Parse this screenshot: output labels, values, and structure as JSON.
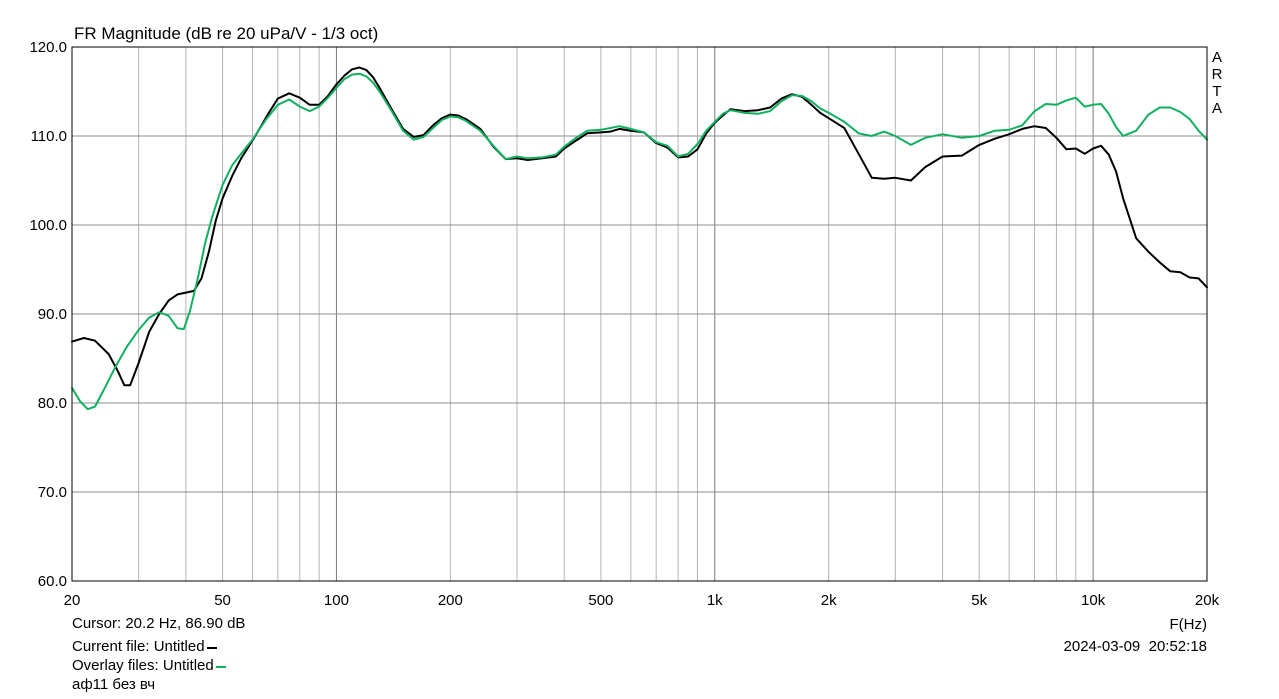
{
  "chart_data": {
    "type": "line",
    "title": "FR Magnitude (dB re 20 uPa/V - 1/3 oct)",
    "xlabel": "F(Hz)",
    "ylabel": "",
    "xscale": "log",
    "xlim": [
      20,
      20000
    ],
    "ylim": [
      60,
      120
    ],
    "grid": true,
    "legend": "none",
    "y_ticks": [
      "60.0",
      "70.0",
      "80.0",
      "90.0",
      "100.0",
      "110.0",
      "120.0"
    ],
    "x_ticks": [
      {
        "value": 20,
        "label": "20"
      },
      {
        "value": 50,
        "label": "50"
      },
      {
        "value": 100,
        "label": "100"
      },
      {
        "value": 200,
        "label": "200"
      },
      {
        "value": 500,
        "label": "500"
      },
      {
        "value": 1000,
        "label": "1k"
      },
      {
        "value": 2000,
        "label": "2k"
      },
      {
        "value": 5000,
        "label": "5k"
      },
      {
        "value": 10000,
        "label": "10k"
      },
      {
        "value": 20000,
        "label": "20k"
      }
    ],
    "series": [
      {
        "color": "#000000",
        "points": [
          [
            20,
            86.9
          ],
          [
            21.5,
            87.3
          ],
          [
            23,
            87.0
          ],
          [
            25,
            85.5
          ],
          [
            26.5,
            83.5
          ],
          [
            27.5,
            82.0
          ],
          [
            28.5,
            82.0
          ],
          [
            30,
            84.5
          ],
          [
            32,
            88.0
          ],
          [
            34,
            90.0
          ],
          [
            36,
            91.5
          ],
          [
            38,
            92.2
          ],
          [
            40,
            92.4
          ],
          [
            42,
            92.6
          ],
          [
            44,
            94.0
          ],
          [
            46,
            97.0
          ],
          [
            48,
            100.5
          ],
          [
            50,
            103.0
          ],
          [
            53,
            105.5
          ],
          [
            56,
            107.5
          ],
          [
            60,
            109.5
          ],
          [
            63,
            111.0
          ],
          [
            66,
            112.5
          ],
          [
            70,
            114.2
          ],
          [
            75,
            114.8
          ],
          [
            80,
            114.3
          ],
          [
            85,
            113.5
          ],
          [
            90,
            113.5
          ],
          [
            95,
            114.5
          ],
          [
            100,
            115.8
          ],
          [
            105,
            116.8
          ],
          [
            110,
            117.5
          ],
          [
            115,
            117.7
          ],
          [
            120,
            117.4
          ],
          [
            125,
            116.6
          ],
          [
            130,
            115.4
          ],
          [
            140,
            113.0
          ],
          [
            150,
            110.8
          ],
          [
            160,
            109.9
          ],
          [
            170,
            110.1
          ],
          [
            180,
            111.2
          ],
          [
            190,
            112.0
          ],
          [
            200,
            112.4
          ],
          [
            210,
            112.3
          ],
          [
            220,
            111.9
          ],
          [
            240,
            110.8
          ],
          [
            260,
            108.8
          ],
          [
            280,
            107.4
          ],
          [
            300,
            107.5
          ],
          [
            320,
            107.3
          ],
          [
            350,
            107.5
          ],
          [
            380,
            107.7
          ],
          [
            400,
            108.6
          ],
          [
            430,
            109.5
          ],
          [
            460,
            110.3
          ],
          [
            500,
            110.4
          ],
          [
            530,
            110.5
          ],
          [
            560,
            110.8
          ],
          [
            600,
            110.6
          ],
          [
            650,
            110.4
          ],
          [
            700,
            109.2
          ],
          [
            750,
            108.7
          ],
          [
            800,
            107.6
          ],
          [
            850,
            107.7
          ],
          [
            900,
            108.5
          ],
          [
            950,
            110.3
          ],
          [
            1000,
            111.5
          ],
          [
            1050,
            112.3
          ],
          [
            1100,
            113.0
          ],
          [
            1200,
            112.8
          ],
          [
            1300,
            112.9
          ],
          [
            1400,
            113.2
          ],
          [
            1500,
            114.2
          ],
          [
            1600,
            114.7
          ],
          [
            1700,
            114.4
          ],
          [
            1800,
            113.5
          ],
          [
            1900,
            112.6
          ],
          [
            2000,
            112.0
          ],
          [
            2200,
            110.9
          ],
          [
            2400,
            108.0
          ],
          [
            2600,
            105.3
          ],
          [
            2800,
            105.2
          ],
          [
            3000,
            105.3
          ],
          [
            3300,
            105.0
          ],
          [
            3600,
            106.5
          ],
          [
            4000,
            107.7
          ],
          [
            4500,
            107.8
          ],
          [
            5000,
            109.0
          ],
          [
            5500,
            109.7
          ],
          [
            6000,
            110.2
          ],
          [
            6500,
            110.8
          ],
          [
            7000,
            111.1
          ],
          [
            7500,
            110.9
          ],
          [
            8000,
            109.8
          ],
          [
            8500,
            108.5
          ],
          [
            9000,
            108.6
          ],
          [
            9500,
            108.0
          ],
          [
            10000,
            108.6
          ],
          [
            10500,
            108.9
          ],
          [
            11000,
            107.9
          ],
          [
            11500,
            106.0
          ],
          [
            12000,
            103.0
          ],
          [
            13000,
            98.5
          ],
          [
            14000,
            97.0
          ],
          [
            15000,
            95.8
          ],
          [
            16000,
            94.8
          ],
          [
            17000,
            94.7
          ],
          [
            18000,
            94.1
          ],
          [
            19000,
            94.0
          ],
          [
            20000,
            93.0
          ]
        ]
      },
      {
        "color": "#10b060",
        "points": [
          [
            20,
            81.7
          ],
          [
            21,
            80.2
          ],
          [
            22,
            79.3
          ],
          [
            23,
            79.6
          ],
          [
            24.5,
            81.8
          ],
          [
            26,
            84.0
          ],
          [
            28,
            86.4
          ],
          [
            30,
            88.2
          ],
          [
            32,
            89.6
          ],
          [
            34,
            90.2
          ],
          [
            36,
            89.8
          ],
          [
            38,
            88.4
          ],
          [
            39.5,
            88.3
          ],
          [
            41,
            90.3
          ],
          [
            43,
            94.0
          ],
          [
            45,
            98.0
          ],
          [
            47,
            101.0
          ],
          [
            50,
            104.5
          ],
          [
            53,
            106.7
          ],
          [
            56,
            108.0
          ],
          [
            60,
            109.6
          ],
          [
            65,
            111.8
          ],
          [
            70,
            113.5
          ],
          [
            75,
            114.1
          ],
          [
            80,
            113.3
          ],
          [
            85,
            112.8
          ],
          [
            90,
            113.3
          ],
          [
            95,
            114.3
          ],
          [
            100,
            115.4
          ],
          [
            105,
            116.4
          ],
          [
            110,
            116.9
          ],
          [
            115,
            117.0
          ],
          [
            120,
            116.7
          ],
          [
            125,
            116.0
          ],
          [
            130,
            115.0
          ],
          [
            140,
            112.8
          ],
          [
            150,
            110.6
          ],
          [
            160,
            109.6
          ],
          [
            170,
            109.9
          ],
          [
            180,
            110.9
          ],
          [
            190,
            111.8
          ],
          [
            200,
            112.2
          ],
          [
            210,
            112.1
          ],
          [
            220,
            111.7
          ],
          [
            240,
            110.6
          ],
          [
            260,
            108.9
          ],
          [
            280,
            107.4
          ],
          [
            300,
            107.7
          ],
          [
            320,
            107.5
          ],
          [
            350,
            107.6
          ],
          [
            380,
            107.9
          ],
          [
            400,
            108.8
          ],
          [
            430,
            109.8
          ],
          [
            460,
            110.6
          ],
          [
            500,
            110.7
          ],
          [
            530,
            110.9
          ],
          [
            560,
            111.1
          ],
          [
            600,
            110.8
          ],
          [
            650,
            110.4
          ],
          [
            700,
            109.3
          ],
          [
            750,
            108.9
          ],
          [
            800,
            107.7
          ],
          [
            850,
            108.0
          ],
          [
            900,
            109.1
          ],
          [
            950,
            110.6
          ],
          [
            1000,
            111.6
          ],
          [
            1050,
            112.5
          ],
          [
            1100,
            112.9
          ],
          [
            1200,
            112.6
          ],
          [
            1300,
            112.5
          ],
          [
            1400,
            112.8
          ],
          [
            1500,
            113.9
          ],
          [
            1600,
            114.6
          ],
          [
            1700,
            114.5
          ],
          [
            1800,
            113.9
          ],
          [
            1900,
            113.1
          ],
          [
            2000,
            112.6
          ],
          [
            2200,
            111.6
          ],
          [
            2400,
            110.3
          ],
          [
            2600,
            110.0
          ],
          [
            2800,
            110.5
          ],
          [
            3000,
            110.0
          ],
          [
            3300,
            109.0
          ],
          [
            3600,
            109.8
          ],
          [
            4000,
            110.2
          ],
          [
            4500,
            109.8
          ],
          [
            5000,
            110.0
          ],
          [
            5500,
            110.6
          ],
          [
            6000,
            110.7
          ],
          [
            6500,
            111.2
          ],
          [
            7000,
            112.8
          ],
          [
            7500,
            113.6
          ],
          [
            8000,
            113.5
          ],
          [
            8500,
            114.0
          ],
          [
            9000,
            114.3
          ],
          [
            9500,
            113.3
          ],
          [
            10000,
            113.5
          ],
          [
            10500,
            113.6
          ],
          [
            11000,
            112.5
          ],
          [
            11500,
            111.0
          ],
          [
            12000,
            110.0
          ],
          [
            13000,
            110.6
          ],
          [
            14000,
            112.4
          ],
          [
            15000,
            113.2
          ],
          [
            16000,
            113.2
          ],
          [
            17000,
            112.7
          ],
          [
            18000,
            111.9
          ],
          [
            19000,
            110.6
          ],
          [
            20000,
            109.6
          ]
        ]
      }
    ]
  },
  "watermark": "ARTA",
  "info": {
    "cursor": "Cursor: 20.2 Hz, 86.90 dB",
    "current_file": "Current file: Untitled",
    "overlay_files": "Overlay files: Untitled",
    "note": "аф11 без вч",
    "date": "2024-03-09",
    "time": "20:52:18",
    "current_color": "#000000",
    "overlay_color": "#10b060"
  }
}
